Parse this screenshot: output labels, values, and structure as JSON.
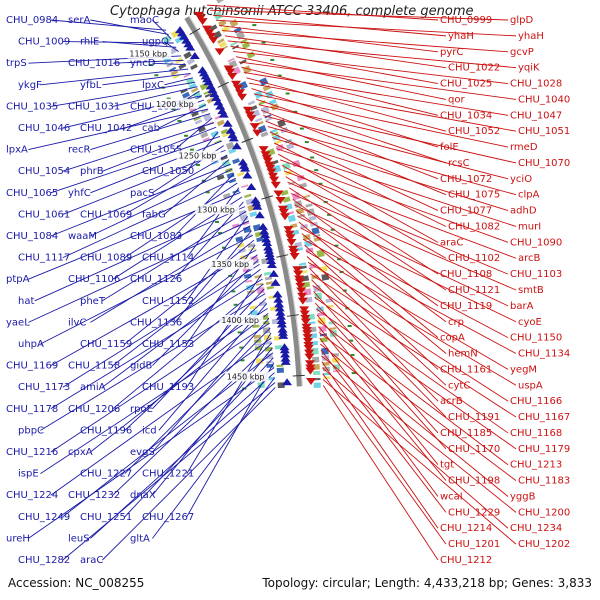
{
  "title": "Cytophaga hutchinsonii ATCC 33406, complete genome",
  "footer": {
    "accession": "Accession: NC_008255",
    "summary": "Topology: circular; Length: 4,433,218 bp; Genes: 3,833"
  },
  "colors": {
    "plus_strand": "#1a1aa8",
    "minus_strand": "#cc1111",
    "backbone": "#8a8a8a"
  },
  "kbp_ticks": [
    "1150 kbp",
    "1200 kbp",
    "1250 kbp",
    "1300 kbp",
    "1350 kbp",
    "1400 kbp",
    "1450 kbp"
  ],
  "left_labels": [
    "CHU_0984",
    "serA",
    "maoC",
    "CHU_1009",
    "rhlE",
    "ugpQ",
    "trpS",
    "CHU_1016",
    "yncD",
    "ykgF",
    "yfbL",
    "lpxC",
    "CHU_1035",
    "CHU_1031",
    "CHU_1030",
    "CHU_1046",
    "CHU_1042",
    "cab",
    "lpxA",
    "recR",
    "CHU_1055",
    "CHU_1054",
    "phrB",
    "CHU_1050",
    "CHU_1065",
    "yhfC",
    "pacS",
    "CHU_1061",
    "CHU_1069",
    "fabG",
    "CHU_1084",
    "waaM",
    "CHU_1083",
    "CHU_1117",
    "CHU_1089",
    "CHU_1114",
    "ptpA",
    "CHU_1106",
    "CHU_1126",
    "hat",
    "pheT",
    "CHU_1152",
    "yaeL",
    "ilvC",
    "CHU_1136",
    "uhpA",
    "CHU_1159",
    "CHU_1153",
    "CHU_1169",
    "CHU_1158",
    "gidB",
    "CHU_1173",
    "amiA",
    "CHU_1193",
    "CHU_1178",
    "CHU_1206",
    "rpoE",
    "pbpC",
    "CHU_1196",
    "icd",
    "CHU_1216",
    "cpxA",
    "evgS",
    "ispE",
    "CHU_1227",
    "CHU_1221",
    "CHU_1224",
    "CHU_1232",
    "dnaX",
    "CHU_1249",
    "CHU_1251",
    "CHU_1267",
    "ureH",
    "leuS",
    "gltA",
    "CHU_1282",
    "araC"
  ],
  "right_labels": [
    "CHU_0999",
    "glpD",
    "yhaH",
    "yhaH",
    "pyrC",
    "gcvP",
    "CHU_1022",
    "yqiK",
    "CHU_1025",
    "CHU_1028",
    "qor",
    "CHU_1040",
    "CHU_1034",
    "CHU_1047",
    "CHU_1052",
    "CHU_1051",
    "folE",
    "rmeD",
    "rcsC",
    "CHU_1070",
    "CHU_1072",
    "yciO",
    "CHU_1075",
    "clpA",
    "CHU_1077",
    "adhD",
    "CHU_1082",
    "murI",
    "araC",
    "CHU_1090",
    "CHU_1102",
    "arcB",
    "CHU_1108",
    "CHU_1103",
    "CHU_1121",
    "smtB",
    "CHU_1119",
    "barA",
    "crp",
    "cyoE",
    "copA",
    "CHU_1150",
    "hemN",
    "CHU_1134",
    "CHU_1161",
    "yegM",
    "cytC",
    "uspA",
    "acrB",
    "CHU_1166",
    "CHU_1191",
    "CHU_1167",
    "CHU_1185",
    "CHU_1168",
    "CHU_1170",
    "CHU_1179",
    "tgt",
    "CHU_1213",
    "CHU_1198",
    "CHU_1183",
    "wcaI",
    "yggB",
    "CHU_1229",
    "CHU_1200",
    "CHU_1214",
    "CHU_1234",
    "CHU_1201",
    "CHU_1202",
    "CHU_1212"
  ]
}
